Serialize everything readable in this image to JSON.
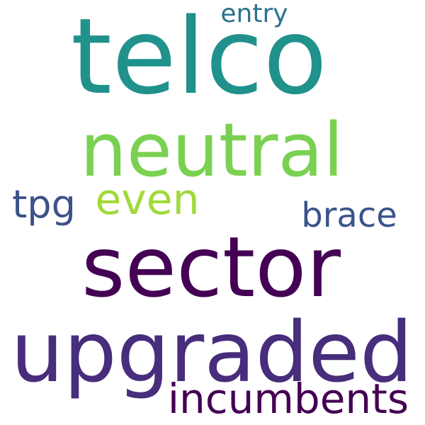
{
  "words": [
    {
      "text": "telco",
      "color": "#21918c"
    },
    {
      "text": "sector",
      "color": "#440154"
    },
    {
      "text": "upgraded",
      "color": "#472d7b"
    },
    {
      "text": "neutral",
      "color": "#7ad151"
    },
    {
      "text": "incumbents",
      "color": "#440154"
    },
    {
      "text": "brace",
      "color": "#3b528b"
    },
    {
      "text": "even",
      "color": "#a0da39"
    },
    {
      "text": "tpg",
      "color": "#3b528b"
    },
    {
      "text": "entry",
      "color": "#2c728e"
    }
  ]
}
